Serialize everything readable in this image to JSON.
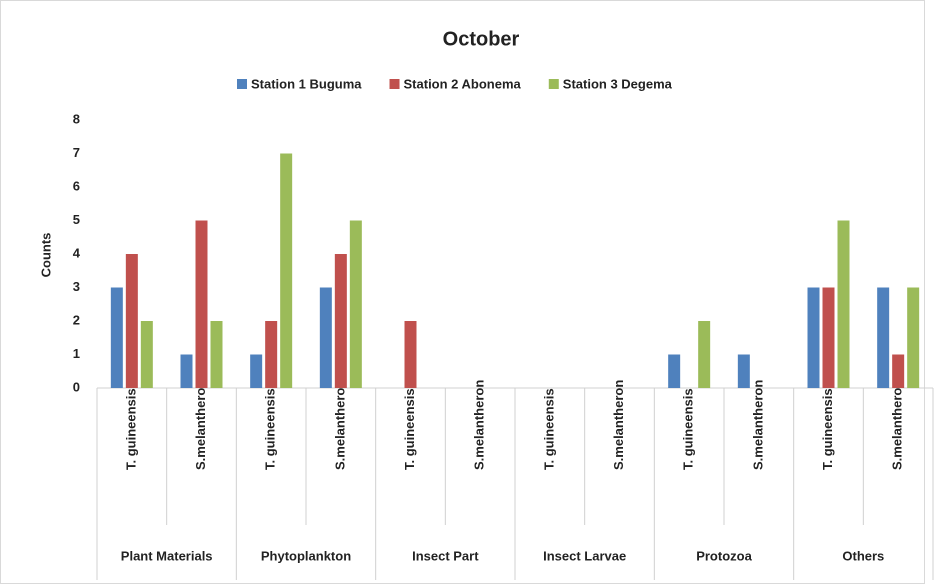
{
  "chart_data": {
    "type": "bar",
    "title": "October",
    "y_label": "Counts",
    "groups": [
      "Plant Materials",
      "Phytoplankton",
      "Insect Part",
      "Insect Larvae",
      "Protozoa",
      "Others"
    ],
    "categories": [
      "T. guineensis",
      "S.melantheron",
      "T. guineensis",
      "S.melantheron",
      "T. guineensis",
      "S.melantheron",
      "T. guineensis",
      "S.melantheron",
      "T. guineensis",
      "S.melantheron",
      "T. guineensis",
      "S.melantheron"
    ],
    "series": [
      {
        "name": "Station 1 Buguma",
        "color": "#4f81bd",
        "values": [
          3,
          1,
          1,
          3,
          0,
          0,
          0,
          0,
          1,
          1,
          3,
          3
        ]
      },
      {
        "name": "Station 2 Abonema",
        "color": "#c0504d",
        "values": [
          4,
          5,
          2,
          4,
          2,
          0,
          0,
          0,
          0,
          0,
          3,
          1
        ]
      },
      {
        "name": "Station 3 Degema",
        "color": "#9bbb59",
        "values": [
          2,
          2,
          7,
          5,
          0,
          0,
          0,
          0,
          2,
          0,
          5,
          3
        ]
      }
    ],
    "ylim": [
      0,
      8
    ],
    "yticks": [
      0,
      1,
      2,
      3,
      4,
      5,
      6,
      7,
      8
    ],
    "legend": "top"
  }
}
